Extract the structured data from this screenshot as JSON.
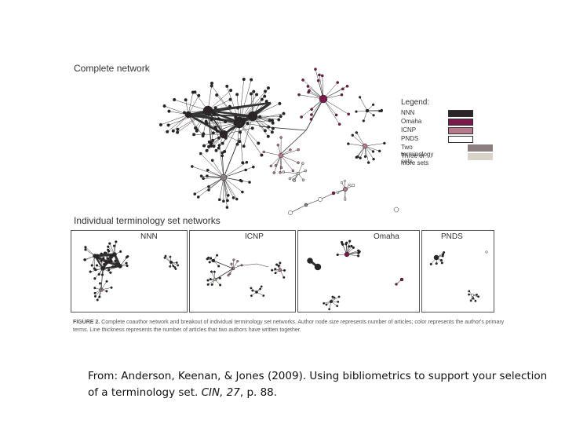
{
  "figure": {
    "complete_title": "Complete network",
    "individual_title": "Individual terminology set networks",
    "legend": {
      "title": "Legend:",
      "items": [
        {
          "label": "NNN",
          "color": "#2a2424"
        },
        {
          "label": "Omaha",
          "color": "#7a1a4a"
        },
        {
          "label": "ICNP",
          "color": "#b77a8a"
        },
        {
          "label": "PNDS",
          "color": "#ffffff"
        },
        {
          "label": "Two terminology sets",
          "color": "#8a7e7e"
        },
        {
          "label": "Three or more sets",
          "color": "#d8d2c8"
        }
      ]
    },
    "panels": [
      {
        "label": "NNN"
      },
      {
        "label": "ICNP"
      },
      {
        "label": "Omaha"
      },
      {
        "label": "PNDS"
      }
    ],
    "caption": {
      "figure_label": "FIGURE 2.",
      "text": "Complete coauthor network and breakout of individual terminology set networks. Author node size represents number of articles; color represents the author's primary terms. Line thickness represents the number of articles that two authors have written together."
    }
  },
  "citation": {
    "prefix": "From:  Anderson, Keenan, & Jones (2009). Using bibliometrics to support your selection of a terminology set. ",
    "journal": "CIN, 27",
    "suffix": ", p. 88."
  }
}
